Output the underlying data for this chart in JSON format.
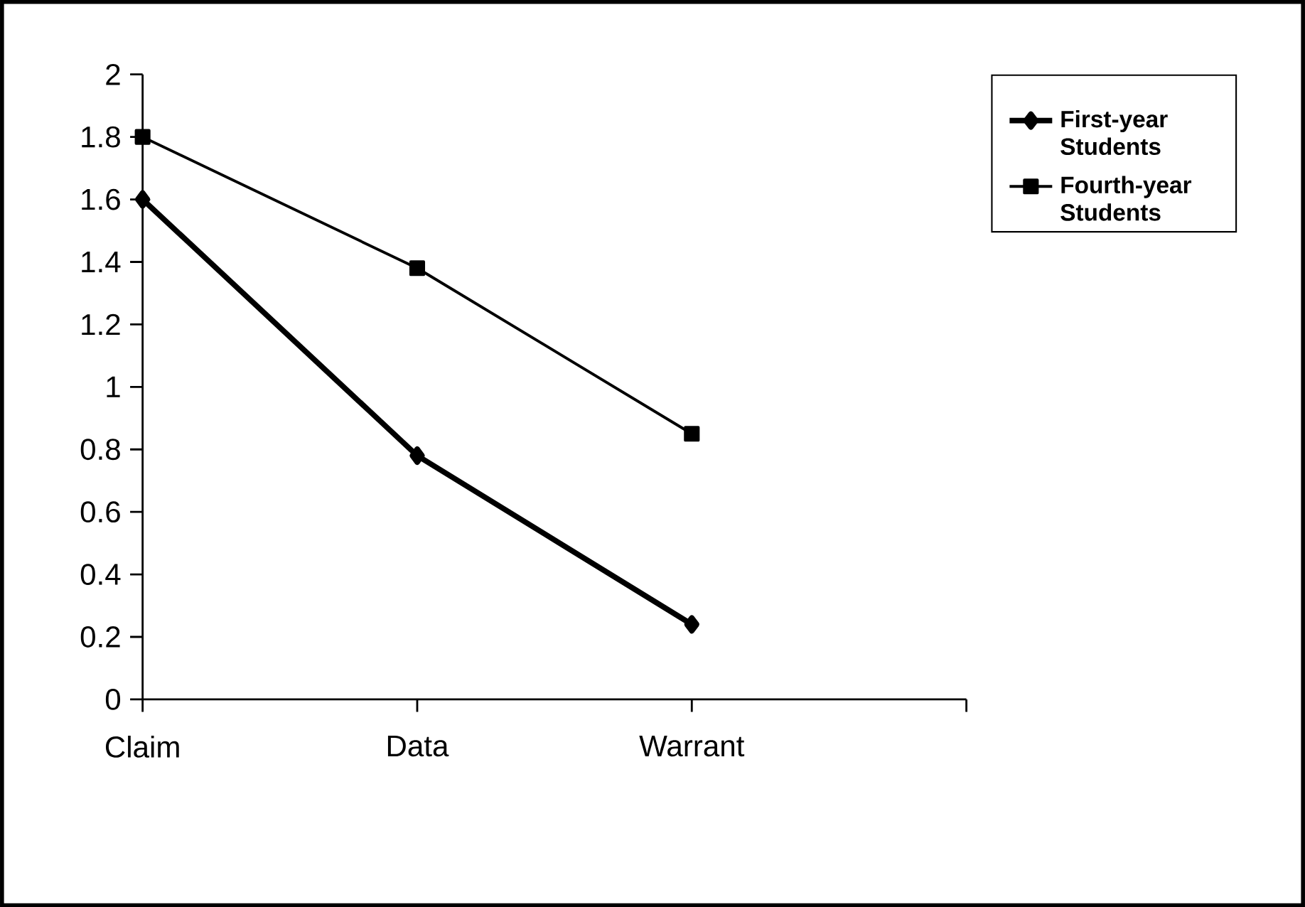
{
  "chart_data": {
    "type": "line",
    "categories": [
      "Claim",
      "Data",
      "Warrant",
      null
    ],
    "series": [
      {
        "name": "First-year Students",
        "color": "#000000",
        "marker": "diamond",
        "values": [
          1.6,
          0.78,
          0.24,
          null
        ]
      },
      {
        "name": "Fourth-year Students",
        "color": "#000000",
        "marker": "square",
        "values": [
          1.8,
          1.38,
          0.85,
          null
        ]
      }
    ],
    "ylim": [
      0,
      2
    ],
    "yticks": [
      0,
      0.2,
      0.4,
      0.6,
      0.8,
      1,
      1.2,
      1.4,
      1.6,
      1.8,
      2
    ],
    "legend": "top right",
    "line_style": "solid"
  }
}
